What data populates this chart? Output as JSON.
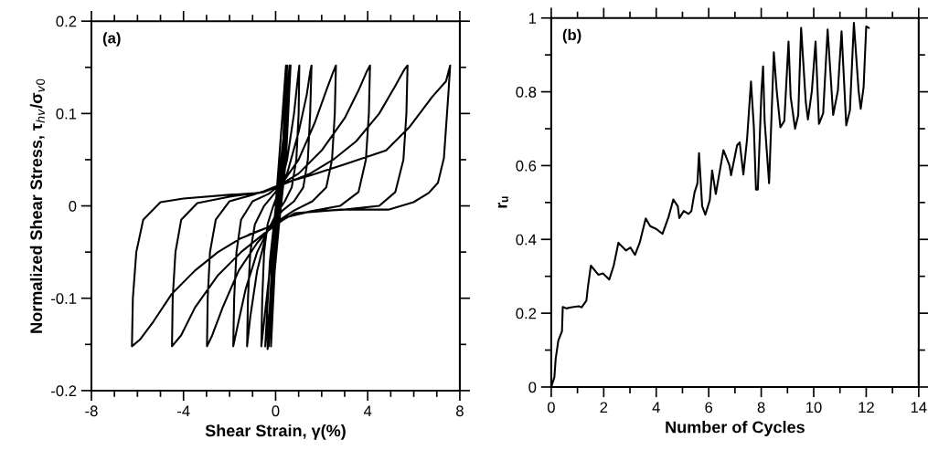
{
  "chart_data": [
    {
      "type": "line",
      "xlabel": "Shear Strain, γ(%)",
      "ylabel": "Normalized Shear Stress, τ$_{hv}$/σ$_{v0}$",
      "annotations": [
        "(a)"
      ],
      "xlim": [
        -8,
        8
      ],
      "ylim": [
        -0.2,
        0.2
      ],
      "xticks": [
        -8,
        {
          "value": -7,
          "label": null
        },
        {
          "value": -6,
          "label": null
        },
        {
          "value": -5,
          "label": null
        },
        -4,
        {
          "value": -3,
          "label": null
        },
        {
          "value": -2,
          "label": null
        },
        {
          "value": -1,
          "label": null
        },
        0,
        {
          "value": 1,
          "label": null
        },
        {
          "value": 2,
          "label": null
        },
        {
          "value": 3,
          "label": null
        },
        4,
        {
          "value": 5,
          "label": null
        },
        {
          "value": 6,
          "label": null
        },
        {
          "value": 7,
          "label": null
        },
        8
      ],
      "yticks": [
        -0.2,
        {
          "value": -0.15,
          "label": null
        },
        -0.1,
        {
          "value": -0.05,
          "label": null
        },
        0,
        {
          "value": 0.05,
          "label": null
        },
        0.1,
        {
          "value": 0.15,
          "label": null
        },
        0.2
      ],
      "series": [
        {
          "color": "#000000",
          "x": [
            0,
            0.3,
            0.45,
            0.3,
            0.1,
            -0.1,
            -0.2,
            0.0,
            0.2,
            0.4,
            0.5,
            0.35,
            0.1,
            -0.15,
            -0.3,
            -0.1,
            0.2,
            0.45,
            0.6,
            0.4,
            0.15,
            -0.15,
            -0.35,
            -0.15,
            0.2,
            0.5,
            0.65,
            0.45,
            0.15,
            -0.2,
            -0.45,
            -0.25,
            0.1,
            0.45,
            0.62,
            0.4,
            0.1,
            -0.3,
            -0.62,
            -0.58,
            -0.5,
            -0.35,
            -0.1,
            0.2,
            0.5,
            0.8,
            0.95,
            1.03,
            1.0,
            0.9,
            0.7,
            0.4,
            0.0,
            -0.4,
            -0.8,
            -1.1,
            -1.24,
            -1.2,
            -1.1,
            -0.9,
            -0.5,
            0.0,
            0.5,
            1.0,
            1.35,
            1.5,
            1.56,
            1.5,
            1.4,
            1.2,
            0.8,
            0.3,
            -0.2,
            -0.8,
            -1.3,
            -1.65,
            -1.84,
            -1.8,
            -1.7,
            -1.5,
            -1.0,
            -0.3,
            0.3,
            1.0,
            1.7,
            2.2,
            2.5,
            2.62,
            2.57,
            2.45,
            2.2,
            1.6,
            0.8,
            0.0,
            -0.8,
            -1.6,
            -2.3,
            -2.75,
            -2.98,
            -2.95,
            -2.85,
            -2.6,
            -2.0,
            -1.0,
            0.0,
            1.0,
            2.0,
            3.0,
            3.6,
            3.95,
            4.1,
            4.05,
            3.92,
            3.6,
            2.8,
            1.5,
            0.5,
            -0.5,
            -1.5,
            -2.5,
            -3.5,
            -4.1,
            -4.5,
            -4.47,
            -4.35,
            -4.1,
            -3.4,
            -2.0,
            -0.5,
            0.5,
            1.5,
            2.5,
            3.5,
            4.5,
            5.2,
            5.6,
            5.73,
            5.68,
            5.55,
            5.2,
            4.5,
            3.0,
            1.5,
            0.5,
            -0.5,
            -1.5,
            -2.5,
            -3.5,
            -4.5,
            -5.3,
            -5.9,
            -6.24,
            -6.2,
            -6.05,
            -5.75,
            -5.0,
            -4.0,
            -2.0,
            -0.7,
            0.4,
            1.5,
            3.0,
            4.8,
            5.8,
            6.8,
            7.4,
            7.58,
            7.51,
            7.31,
            7.05,
            6.65,
            5.99,
            4.93,
            2.82,
            0.83,
            -0.1,
            -1.16
          ],
          "values": [
            0,
            0.1,
            0.152,
            0.05,
            0.0,
            -0.08,
            -0.152,
            -0.05,
            0.02,
            0.1,
            0.152,
            0.05,
            -0.02,
            -0.1,
            -0.152,
            -0.05,
            0.03,
            0.1,
            0.152,
            0.05,
            -0.02,
            -0.1,
            -0.155,
            -0.06,
            0.02,
            0.1,
            0.152,
            0.05,
            -0.02,
            -0.1,
            -0.152,
            -0.06,
            0.02,
            0.1,
            0.152,
            0.05,
            0.0,
            -0.08,
            -0.152,
            -0.1,
            -0.05,
            -0.02,
            0.0,
            0.02,
            0.05,
            0.1,
            0.135,
            0.152,
            0.1,
            0.05,
            0.02,
            0.005,
            -0.01,
            -0.03,
            -0.07,
            -0.12,
            -0.152,
            -0.1,
            -0.05,
            -0.02,
            0.0,
            0.015,
            0.035,
            0.08,
            0.12,
            0.145,
            0.152,
            0.1,
            0.05,
            0.02,
            0.005,
            -0.005,
            -0.02,
            -0.05,
            -0.09,
            -0.13,
            -0.152,
            -0.1,
            -0.05,
            -0.015,
            0.005,
            0.013,
            0.025,
            0.05,
            0.09,
            0.125,
            0.145,
            0.152,
            0.1,
            0.05,
            0.02,
            0.005,
            -0.005,
            -0.018,
            -0.04,
            -0.07,
            -0.11,
            -0.14,
            -0.152,
            -0.1,
            -0.05,
            -0.015,
            0.005,
            0.012,
            0.02,
            0.035,
            0.06,
            0.095,
            0.125,
            0.145,
            0.152,
            0.1,
            0.05,
            0.015,
            0.0,
            -0.006,
            -0.012,
            -0.03,
            -0.05,
            -0.075,
            -0.11,
            -0.14,
            -0.152,
            -0.1,
            -0.05,
            -0.015,
            0.003,
            0.01,
            0.015,
            0.025,
            0.035,
            0.05,
            0.07,
            0.1,
            0.13,
            0.148,
            0.152,
            0.1,
            0.05,
            0.015,
            0.0,
            -0.004,
            -0.006,
            -0.012,
            -0.025,
            -0.035,
            -0.05,
            -0.07,
            -0.095,
            -0.125,
            -0.145,
            -0.152,
            -0.1,
            -0.05,
            -0.015,
            0.004,
            0.008,
            0.012,
            0.014,
            0.025,
            0.033,
            0.045,
            0.06,
            0.085,
            0.118,
            0.135,
            0.152,
            0.124,
            0.052,
            0.025,
            0.014,
            0.004,
            -0.004,
            -0.004,
            -0.008,
            -0.021,
            -0.031
          ]
        }
      ]
    },
    {
      "type": "line",
      "xlabel": "Number of Cycles",
      "ylabel": "rᵤ",
      "annotations": [
        "(b)"
      ],
      "xlim": [
        0,
        14
      ],
      "ylim": [
        0,
        1
      ],
      "xticks": [
        0,
        {
          "value": 1,
          "label": null
        },
        2,
        {
          "value": 3,
          "label": null
        },
        4,
        {
          "value": 5,
          "label": null
        },
        6,
        {
          "value": 7,
          "label": null
        },
        8,
        {
          "value": 9,
          "label": null
        },
        10,
        {
          "value": 11,
          "label": null
        },
        12,
        {
          "value": 13,
          "label": null
        },
        14
      ],
      "yticks": [
        0,
        {
          "value": 0.1,
          "label": null
        },
        0.2,
        {
          "value": 0.3,
          "label": null
        },
        0.4,
        {
          "value": 0.5,
          "label": null
        },
        0.6,
        {
          "value": 0.7,
          "label": null
        },
        0.8,
        {
          "value": 0.9,
          "label": null
        },
        1
      ],
      "series": [
        {
          "color": "#000000",
          "x": [
            0,
            0.12,
            0.17,
            0.27,
            0.41,
            0.44,
            0.58,
            0.75,
            1.05,
            1.16,
            1.34,
            1.39,
            1.51,
            1.8,
            1.97,
            2.21,
            2.38,
            2.56,
            2.85,
            3.02,
            3.19,
            3.37,
            3.6,
            3.77,
            4.01,
            4.24,
            4.47,
            4.65,
            4.82,
            4.88,
            5.05,
            5.23,
            5.34,
            5.46,
            5.57,
            5.63,
            5.75,
            5.87,
            6.04,
            6.13,
            6.27,
            6.56,
            6.79,
            6.85,
            7.08,
            7.18,
            7.32,
            7.46,
            7.61,
            7.72,
            7.8,
            7.87,
            8.01,
            8.07,
            8.13,
            8.3,
            8.48,
            8.59,
            8.73,
            8.88,
            9.04,
            9.12,
            9.29,
            9.41,
            9.52,
            9.7,
            9.78,
            9.93,
            10.07,
            10.2,
            10.36,
            10.53,
            10.74,
            10.92,
            11.06,
            11.24,
            11.38,
            11.53,
            11.71,
            11.79,
            11.9,
            12.0,
            12.1
          ],
          "values": [
            0,
            0.027,
            0.077,
            0.126,
            0.151,
            0.217,
            0.213,
            0.216,
            0.219,
            0.216,
            0.234,
            0.267,
            0.329,
            0.304,
            0.308,
            0.291,
            0.329,
            0.391,
            0.37,
            0.378,
            0.358,
            0.391,
            0.457,
            0.436,
            0.428,
            0.415,
            0.461,
            0.508,
            0.49,
            0.458,
            0.477,
            0.469,
            0.477,
            0.527,
            0.552,
            0.634,
            0.49,
            0.467,
            0.506,
            0.587,
            0.523,
            0.642,
            0.601,
            0.574,
            0.655,
            0.663,
            0.576,
            0.671,
            0.828,
            0.704,
            0.535,
            0.535,
            0.803,
            0.869,
            0.721,
            0.552,
            0.907,
            0.803,
            0.704,
            0.721,
            0.936,
            0.787,
            0.7,
            0.737,
            0.973,
            0.77,
            0.725,
            0.803,
            0.936,
            0.713,
            0.742,
            0.969,
            0.737,
            0.803,
            0.964,
            0.709,
            0.75,
            0.987,
            0.803,
            0.754,
            0.812,
            0.977,
            0.973
          ]
        }
      ]
    }
  ]
}
